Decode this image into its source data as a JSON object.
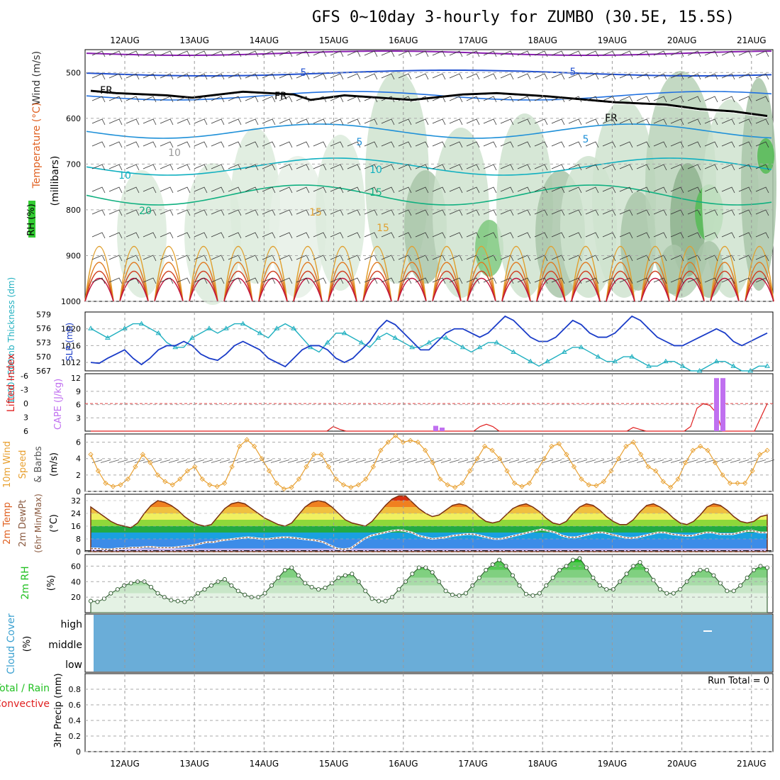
{
  "title": "GFS 0~10day 3-hourly for ZUMBO (30.5E, 15.5S)",
  "dates": [
    "12AUG",
    "13AUG",
    "14AUG",
    "15AUG",
    "16AUG",
    "17AUG",
    "18AUG",
    "19AUG",
    "20AUG",
    "21AUG"
  ],
  "chart_data": [
    {
      "type": "heatmap",
      "panel": "upper-air cross section",
      "ylabel_parts": [
        "Wind (m/s)",
        "Temperature (°C)",
        "RH (%)",
        "(millibars)"
      ],
      "ylabel_wind": "Wind (m/s)",
      "ylabel_temp": "Temperature (°C)",
      "ylabel_rh": "RH (%)",
      "ylabel_units": "(millibars)",
      "yticks": [
        "500",
        "600",
        "700",
        "800",
        "900",
        "1000"
      ],
      "ylim": [
        450,
        1000
      ],
      "contour_labels": [
        "5",
        "5",
        "5",
        "5",
        "FR",
        "FR",
        "FR",
        "10",
        "10",
        "10",
        "15",
        "15",
        "20",
        "15"
      ],
      "freezing_level_mb": [
        [
          0,
          540
        ],
        [
          3,
          545
        ],
        [
          9,
          550
        ],
        [
          12,
          555
        ],
        [
          18,
          542
        ],
        [
          24,
          548
        ],
        [
          26,
          560
        ],
        [
          30,
          550
        ],
        [
          38,
          560
        ],
        [
          44,
          548
        ],
        [
          48,
          545
        ],
        [
          54,
          552
        ],
        [
          62,
          565
        ],
        [
          68,
          570
        ],
        [
          72,
          580
        ],
        [
          76,
          585
        ],
        [
          78,
          590
        ],
        [
          80,
          595
        ]
      ]
    },
    {
      "type": "line",
      "panel": "thickness and SLP",
      "ylabel_left": "1000~500mb Thickness (dm)",
      "ylabel_right": "SLP (mb)",
      "thickness_ticks": [
        "567",
        "570",
        "573",
        "576",
        "579"
      ],
      "slp_ticks": [
        "1012",
        "1016",
        "1020"
      ],
      "series": [
        {
          "name": "1000~500mb Thickness (dm)",
          "values": [
            576,
            575,
            574,
            575,
            576,
            577,
            577,
            576,
            575,
            573,
            572,
            572,
            574,
            575,
            576,
            575,
            576,
            577,
            577,
            576,
            575,
            574,
            576,
            577,
            576,
            574,
            572,
            571,
            573,
            575,
            575,
            574,
            573,
            572,
            574,
            575,
            574,
            573,
            572,
            572,
            573,
            574,
            574,
            573,
            572,
            571,
            572,
            573,
            573,
            572,
            571,
            570,
            569,
            568,
            569,
            570,
            571,
            572,
            572,
            571,
            570,
            569,
            569,
            570,
            570,
            569,
            568,
            568,
            569,
            569,
            568,
            567,
            567,
            568,
            569,
            569,
            568,
            567,
            567,
            568,
            568
          ]
        },
        {
          "name": "SLP (mb)",
          "values": [
            1012,
            1011.8,
            1013,
            1014,
            1015,
            1013,
            1011.5,
            1013,
            1015,
            1016,
            1016,
            1017,
            1016,
            1014,
            1013,
            1012.5,
            1014,
            1016,
            1017,
            1016,
            1015,
            1013,
            1012,
            1011,
            1013,
            1015,
            1016,
            1016,
            1015,
            1013,
            1012,
            1013,
            1015,
            1017,
            1020,
            1022,
            1021,
            1019,
            1017,
            1015,
            1015,
            1017,
            1019,
            1020,
            1020,
            1019,
            1018,
            1019,
            1021,
            1023,
            1022,
            1020,
            1018,
            1017,
            1017,
            1018,
            1020,
            1022,
            1021,
            1019,
            1018,
            1018,
            1019,
            1021,
            1023,
            1022,
            1020,
            1018,
            1017,
            1016,
            1016,
            1017,
            1018,
            1019,
            1020,
            1019,
            1017,
            1016,
            1017,
            1018,
            1019
          ]
        }
      ]
    },
    {
      "type": "bar",
      "panel": "lifted index and CAPE",
      "ylabel_left": "Lifted Index",
      "ylabel_right": "CAPE (J/kg)",
      "li_ticks": [
        "6",
        "3",
        "0",
        "-3",
        "-6"
      ],
      "cape_ticks": [
        "3",
        "6",
        "9",
        "12"
      ],
      "lifted_index": [
        6,
        6,
        6,
        6,
        6,
        6,
        6,
        6,
        6,
        6,
        6,
        6,
        6,
        6,
        6,
        6,
        6,
        6,
        6,
        6,
        6,
        6,
        6,
        6,
        6,
        6,
        6,
        6,
        6,
        6,
        6,
        6,
        6,
        6,
        6,
        6,
        6,
        6,
        5,
        5.6,
        6,
        6,
        6,
        6,
        6,
        6,
        6,
        6,
        6,
        6,
        6,
        6,
        6,
        6,
        6,
        6,
        6,
        6,
        6,
        6,
        6,
        5,
        4.5,
        5,
        6,
        6,
        6,
        6,
        6,
        6,
        6,
        6,
        6,
        6,
        6,
        6,
        6,
        6,
        6,
        6,
        6,
        6,
        6,
        6,
        6,
        5.2,
        5.6,
        6,
        6,
        6,
        6,
        6,
        6,
        6,
        5,
        1,
        0,
        0.4,
        2,
        6,
        6,
        6,
        6,
        6,
        6,
        3,
        0
      ],
      "cape_bars": [
        [
          54,
          1.2
        ],
        [
          55,
          0.8
        ],
        [
          98,
          12
        ],
        [
          99,
          12
        ]
      ]
    },
    {
      "type": "line",
      "panel": "10m wind",
      "ylabel_parts": [
        "10m Wind",
        "Speed",
        "& Barbs",
        "(m/s)"
      ],
      "yticks": [
        "0",
        "2",
        "4",
        "6"
      ],
      "ylim": [
        0,
        7
      ],
      "values": [
        4.5,
        2.5,
        1.0,
        0.6,
        0.8,
        1.5,
        3.0,
        4.5,
        3.5,
        2.0,
        1.2,
        0.8,
        1.5,
        2.5,
        3.0,
        1.5,
        0.8,
        0.6,
        1.0,
        3.0,
        5.5,
        6.3,
        5.5,
        4.0,
        2.5,
        1.0,
        0.3,
        0.5,
        1.5,
        3.0,
        4.5,
        4.5,
        3.0,
        1.5,
        0.8,
        0.5,
        0.8,
        1.5,
        3.0,
        5.0,
        6.0,
        6.8,
        6.0,
        6.2,
        6.0,
        5.0,
        3.5,
        1.5,
        0.8,
        0.5,
        1.0,
        2.5,
        4.0,
        5.5,
        5.0,
        4.0,
        2.5,
        1.0,
        0.6,
        1.0,
        2.5,
        4.0,
        5.5,
        5.8,
        4.5,
        3.0,
        1.5,
        0.8,
        0.7,
        1.2,
        2.5,
        4.0,
        5.5,
        6.0,
        4.5,
        3.0,
        2.5,
        1.2,
        0.5,
        1.5,
        3.5,
        5.0,
        5.5,
        5.0,
        3.5,
        2.0,
        1.0,
        1.0,
        1.0,
        2.5,
        4.5,
        5.0
      ]
    },
    {
      "type": "area",
      "panel": "2m temperature",
      "ylabel_parts": [
        "2m Temp",
        "2m DewPt",
        "(6hr Min/Max)",
        "(°C)"
      ],
      "yticks": [
        "0",
        "8",
        "16",
        "24",
        "32"
      ],
      "ylim": [
        0,
        36
      ],
      "temp": [
        28,
        25,
        22,
        19,
        17,
        16,
        15,
        18,
        24,
        29,
        32,
        31,
        29,
        26,
        22,
        19,
        17,
        16,
        17,
        22,
        27,
        30,
        31,
        30,
        27,
        24,
        21,
        19,
        17,
        16,
        18,
        23,
        28,
        31,
        32,
        31,
        28,
        24,
        20,
        18,
        17,
        16,
        19,
        24,
        29,
        33,
        35,
        35,
        31,
        27,
        24,
        22,
        23,
        26,
        29,
        30,
        29,
        26,
        22,
        19,
        18,
        19,
        23,
        27,
        29,
        30,
        28,
        25,
        21,
        18,
        17,
        19,
        24,
        28,
        30,
        29,
        26,
        22,
        19,
        17,
        17,
        20,
        25,
        29,
        30,
        28,
        25,
        21,
        18,
        17,
        19,
        23,
        28,
        30,
        29,
        26,
        22,
        19,
        18,
        19,
        22,
        23
      ],
      "dewpt": [
        2,
        2,
        1.5,
        1.5,
        2,
        2,
        2.5,
        2.5,
        3,
        3,
        2.5,
        2.5,
        2.5,
        3,
        3.5,
        4,
        5,
        6,
        6,
        7,
        7.5,
        8,
        8.5,
        9,
        8.5,
        8,
        8,
        8.5,
        9,
        9,
        8.5,
        8,
        7.5,
        7,
        6,
        4,
        2,
        1.5,
        2,
        5,
        8,
        10,
        11,
        12,
        13,
        13.5,
        13,
        12,
        10,
        9,
        8,
        8.5,
        9,
        10,
        10.5,
        11,
        11,
        10,
        9,
        8,
        8,
        9,
        10,
        11,
        12,
        13,
        14,
        13,
        12,
        10,
        9,
        9,
        10,
        11,
        12,
        12,
        11,
        10,
        9,
        8.5,
        9,
        10,
        11,
        12,
        12,
        11,
        10.5,
        10,
        10,
        11,
        12,
        12,
        11,
        11,
        11,
        12,
        13,
        13,
        12,
        12
      ]
    },
    {
      "type": "area",
      "panel": "2m relative humidity",
      "ylabel_parts": [
        "2m RH",
        "(%)"
      ],
      "yticks": [
        "20",
        "40",
        "60"
      ],
      "ylim": [
        0,
        75
      ],
      "values": [
        15,
        14,
        18,
        25,
        30,
        35,
        38,
        40,
        40,
        33,
        25,
        20,
        16,
        15,
        14,
        18,
        25,
        30,
        35,
        40,
        43,
        35,
        28,
        23,
        20,
        20,
        25,
        35,
        45,
        55,
        58,
        48,
        38,
        33,
        30,
        32,
        38,
        45,
        48,
        50,
        40,
        28,
        18,
        15,
        15,
        20,
        30,
        40,
        50,
        58,
        58,
        52,
        40,
        28,
        23,
        22,
        25,
        35,
        45,
        55,
        62,
        68,
        60,
        48,
        35,
        24,
        22,
        25,
        35,
        45,
        55,
        60,
        68,
        70,
        58,
        45,
        35,
        30,
        30,
        40,
        50,
        60,
        65,
        55,
        42,
        30,
        25,
        25,
        30,
        40,
        50,
        55,
        55,
        48,
        38,
        28,
        28,
        35,
        45,
        55,
        60,
        58
      ]
    },
    {
      "type": "bar",
      "panel": "cloud cover",
      "ylabel": "Cloud Cover",
      "yunits": "(%)",
      "levels": [
        "high",
        "middle",
        "low"
      ],
      "value_percent": 100
    },
    {
      "type": "bar",
      "panel": "precipitation",
      "ylabel_left_a": "Total / Rain",
      "ylabel_left_b": "Convective",
      "ylabel": "3hr Precip (mm)",
      "yticks": [
        "0",
        "0.2",
        "0.4",
        "0.6",
        "0.8"
      ],
      "ylim": [
        0,
        1
      ],
      "run_total": "Run Total = 0",
      "values": []
    }
  ]
}
